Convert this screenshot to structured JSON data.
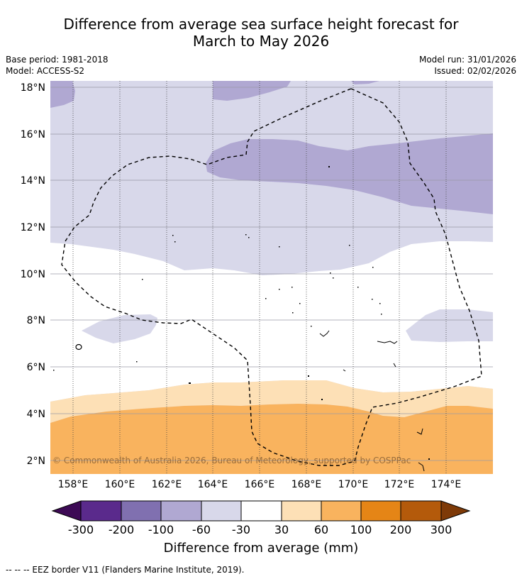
{
  "title": {
    "line1": "Difference from average sea surface height forecast for",
    "line2": "March to May 2026"
  },
  "meta": {
    "base_period": "Base period: 1981-2018",
    "model": "Model: ACCESS-S2",
    "model_run": "Model run: 31/01/2026",
    "issued": "Issued: 02/02/2026"
  },
  "map": {
    "lat_labels": [
      "18°N",
      "16°N",
      "14°N",
      "12°N",
      "10°N",
      "8°N",
      "6°N",
      "4°N",
      "2°N"
    ],
    "lon_labels": [
      "158°E",
      "160°E",
      "162°E",
      "164°E",
      "166°E",
      "168°E",
      "170°E",
      "172°E",
      "174°E"
    ],
    "copyright": "© Commonwealth of Australia 2026, Bureau of Meteorology, supported by COSPPac"
  },
  "colorbar": {
    "labels": [
      "-300",
      "-200",
      "-100",
      "-60",
      "-30",
      "30",
      "60",
      "100",
      "200",
      "300"
    ],
    "colors": [
      "#3d0a55",
      "#5a2a8c",
      "#8070b0",
      "#b0a8d2",
      "#d8d8ea",
      "#ffffff",
      "#fde0b6",
      "#f9b35e",
      "#e58516",
      "#b45a0b",
      "#7e3a08"
    ],
    "title": "Difference from average (mm)"
  },
  "footer": {
    "eez_note": "--  --  -- EEZ border V11 (Flanders Marine Institute, 2019)."
  }
}
